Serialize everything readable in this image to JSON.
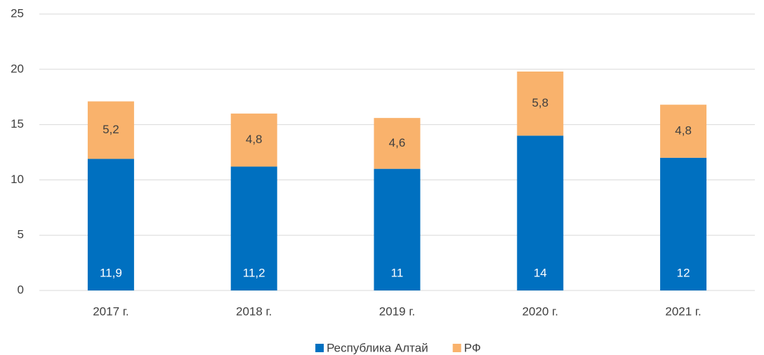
{
  "chart_data": {
    "type": "stacked_bar",
    "categories": [
      "2017 г.",
      "2018 г.",
      "2019 г.",
      "2020 г.",
      "2021 г."
    ],
    "series": [
      {
        "name": "Республика Алтай",
        "color": "#0070c0",
        "values": [
          11.9,
          11.2,
          11,
          14,
          12
        ],
        "value_labels": [
          "11,9",
          "11,2",
          "11",
          "14",
          "12"
        ]
      },
      {
        "name": "РФ",
        "color": "#f9b26c",
        "values": [
          5.2,
          4.8,
          4.6,
          5.8,
          4.8
        ],
        "value_labels": [
          "5,2",
          "4,8",
          "4,6",
          "5,8",
          "4,8"
        ]
      }
    ],
    "ylim": [
      0,
      25
    ],
    "yticks": [
      0,
      5,
      10,
      15,
      20,
      25
    ],
    "grid": true,
    "legend": "bottom"
  }
}
